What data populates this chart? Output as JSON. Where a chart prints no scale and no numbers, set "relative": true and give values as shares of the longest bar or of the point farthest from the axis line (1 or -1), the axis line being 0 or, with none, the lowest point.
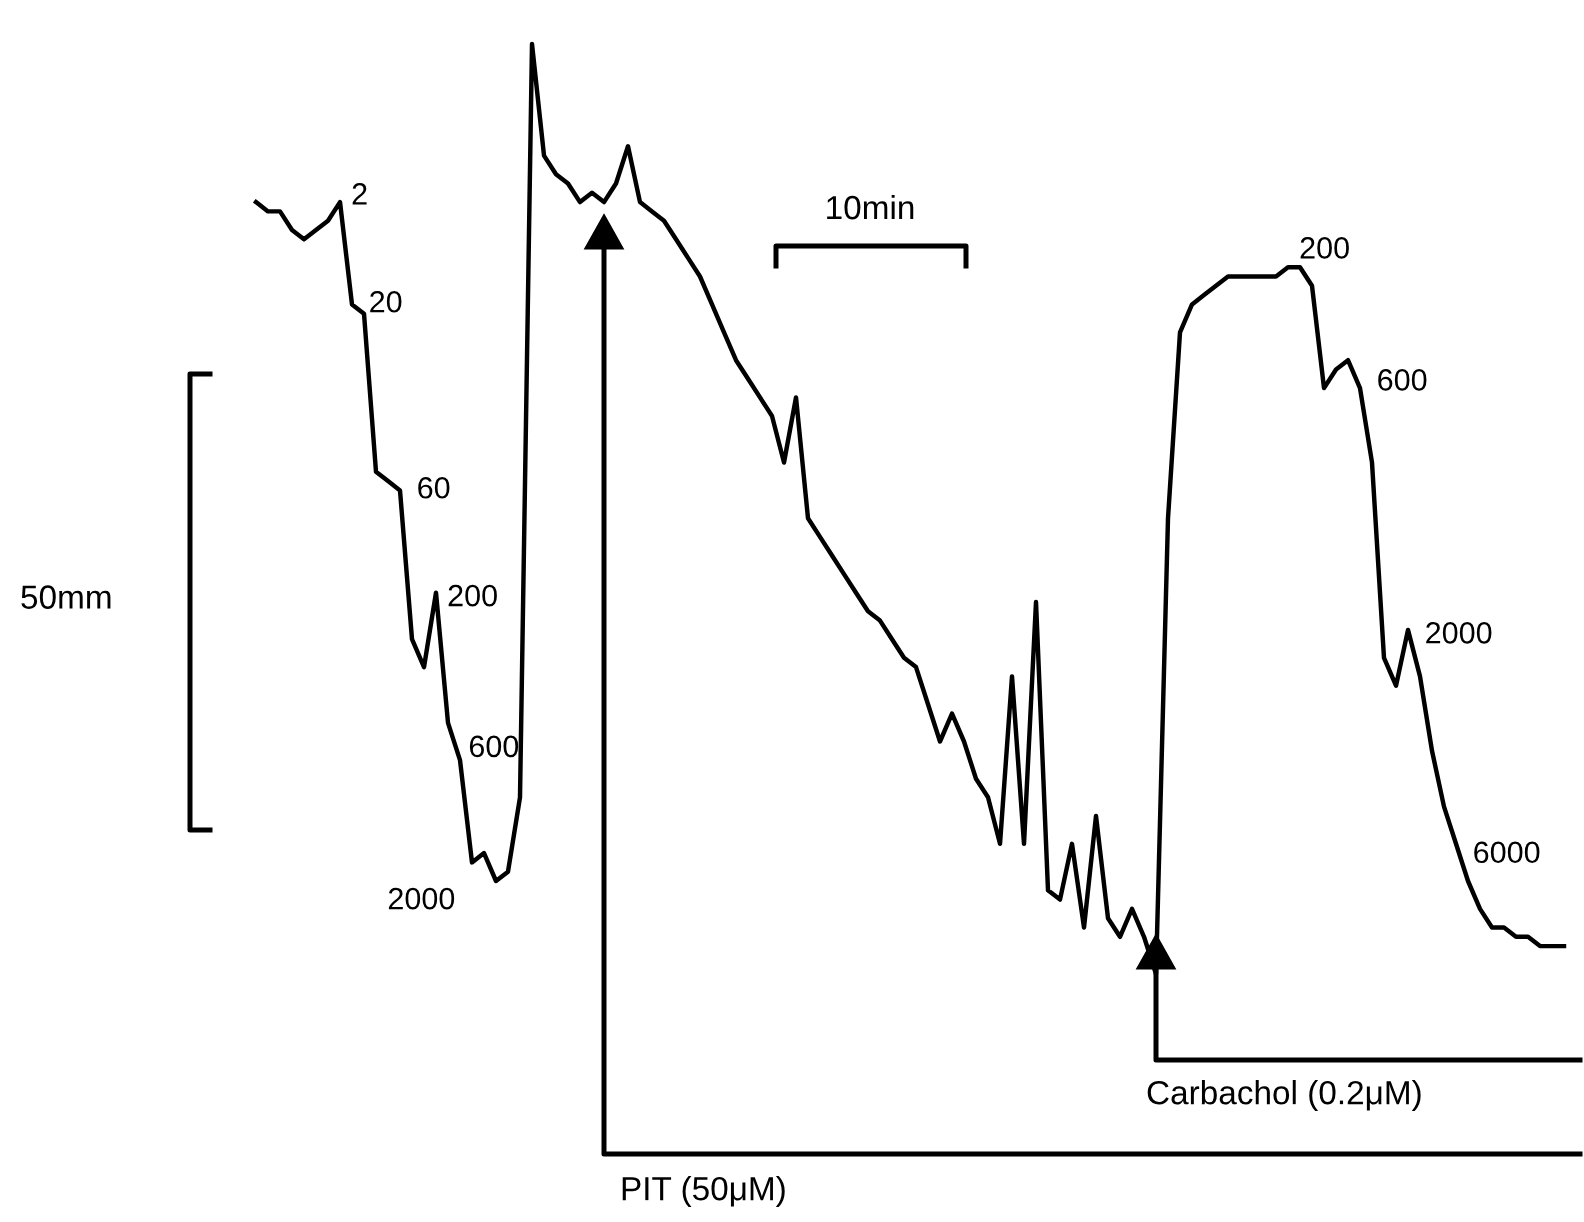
{
  "chart_data": {
    "type": "line",
    "relative": true,
    "marker": "none",
    "line_style": "solid",
    "categories": [
      null,
      null,
      null,
      null,
      null,
      null,
      null,
      null,
      null,
      null,
      null,
      null,
      null,
      null,
      null,
      null,
      null,
      null,
      null,
      null,
      null,
      null,
      null,
      null,
      null,
      null,
      null,
      null,
      null,
      null,
      null,
      null,
      null,
      null,
      null,
      null,
      null,
      null,
      null,
      null,
      null,
      null,
      null,
      null,
      null,
      null,
      null,
      null,
      null,
      null,
      null,
      null,
      null,
      null,
      null,
      null,
      null,
      null,
      null,
      null,
      null,
      null,
      null,
      null,
      null,
      null,
      null,
      null,
      null,
      null,
      null,
      null,
      null,
      null,
      null,
      null,
      null,
      null,
      null,
      null,
      null,
      null,
      null,
      null,
      null,
      null,
      null,
      null,
      null,
      null,
      null,
      null,
      null,
      null,
      null,
      null,
      null,
      null,
      null,
      null,
      null,
      null,
      null,
      null,
      null,
      null,
      null,
      null,
      null,
      null
    ],
    "series": [
      {
        "color": "#000000",
        "values": [
          0.83,
          0.82,
          0.82,
          0.8,
          0.79,
          0.8,
          0.81,
          0.83,
          0.72,
          0.71,
          0.54,
          0.53,
          0.52,
          0.36,
          0.33,
          0.41,
          0.27,
          0.23,
          0.12,
          0.13,
          0.1,
          0.11,
          0.19,
          1.0,
          0.88,
          0.86,
          0.85,
          0.83,
          0.84,
          0.83,
          0.85,
          0.89,
          0.83,
          0.82,
          0.81,
          0.79,
          0.77,
          0.75,
          0.72,
          0.69,
          0.66,
          0.64,
          0.62,
          0.6,
          0.55,
          0.62,
          0.49,
          0.47,
          0.45,
          0.43,
          0.41,
          0.39,
          0.38,
          0.36,
          0.34,
          0.33,
          0.29,
          0.25,
          0.28,
          0.25,
          0.21,
          0.19,
          0.14,
          0.32,
          0.14,
          0.4,
          0.09,
          0.08,
          0.14,
          0.05,
          0.17,
          0.06,
          0.04,
          0.07,
          0.04,
          0.0,
          0.49,
          0.69,
          0.72,
          0.73,
          0.74,
          0.75,
          0.75,
          0.75,
          0.75,
          0.75,
          0.76,
          0.76,
          0.74,
          0.63,
          0.65,
          0.66,
          0.63,
          0.55,
          0.34,
          0.31,
          0.37,
          0.32,
          0.24,
          0.18,
          0.14,
          0.1,
          0.07,
          0.05,
          0.05,
          0.04,
          0.04,
          0.03,
          0.03,
          0.03
        ]
      }
    ],
    "annotations": [
      "2",
      "20",
      "60",
      "200",
      "600",
      "2000",
      "200",
      "600",
      "2000",
      "6000",
      "50mm",
      "10min",
      "PIT (50μM)",
      "Carbachol (0.2μM)"
    ]
  }
}
